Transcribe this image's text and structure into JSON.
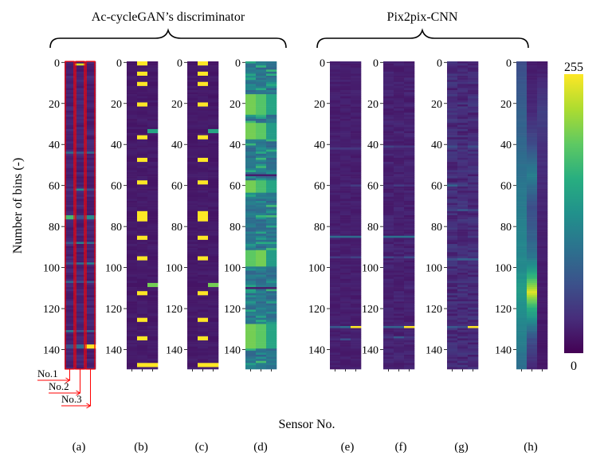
{
  "chart_data": {
    "type": "heatmap",
    "title_left": "Ac-cycleGAN’s discriminator",
    "title_right": "Pix2pix-CNN",
    "ylabel": "Number of bins (-)",
    "xlabel": "Sensor No.",
    "ylim": [
      0,
      150
    ],
    "yticks": [
      0,
      20,
      40,
      60,
      80,
      100,
      120,
      140
    ],
    "colorbar": {
      "min": 0,
      "max": 255,
      "max_label": "255",
      "min_label": "0",
      "colormap": "viridis"
    },
    "sensor_annotations": [
      "No.1",
      "No.2",
      "No.3"
    ],
    "panels": [
      {
        "label": "(a)",
        "group": "Ac-cycleGAN’s discriminator",
        "sensors": 3,
        "base": 15,
        "noise": 18,
        "highlight_sensors": true,
        "bands": [
          {
            "bin": 44,
            "width": 1,
            "values": [
              90,
              70,
              85
            ]
          },
          {
            "bin": 62,
            "width": 1,
            "values": [
              40,
              120,
              60
            ]
          },
          {
            "bin": 75,
            "width": 2,
            "values": [
              175,
              60,
              120
            ]
          },
          {
            "bin": 88,
            "width": 1,
            "values": [
              70,
              110,
              90
            ]
          },
          {
            "bin": 98,
            "width": 1,
            "values": [
              60,
              90,
              110
            ]
          },
          {
            "bin": 107,
            "width": 1,
            "values": [
              80,
              60,
              70
            ]
          },
          {
            "bin": 131,
            "width": 1,
            "values": [
              100,
              60,
              80
            ]
          },
          {
            "bin": 138,
            "width": 2,
            "values": [
              60,
              90,
              255
            ]
          },
          {
            "bin": 1,
            "width": 1,
            "values": [
              20,
              240,
              20
            ]
          }
        ]
      },
      {
        "label": "(b)",
        "group": "Ac-cycleGAN’s discriminator",
        "sensors": 3,
        "base": 14,
        "noise": 8,
        "highlight_sensors": false,
        "bands": [
          {
            "bin": 0,
            "width": 2,
            "values": [
              14,
              255,
              14
            ]
          },
          {
            "bin": 5,
            "width": 2,
            "values": [
              14,
              255,
              14
            ]
          },
          {
            "bin": 10,
            "width": 2,
            "values": [
              14,
              255,
              14
            ]
          },
          {
            "bin": 20,
            "width": 2,
            "values": [
              14,
              255,
              14
            ]
          },
          {
            "bin": 33,
            "width": 2,
            "values": [
              14,
              14,
              150
            ]
          },
          {
            "bin": 36,
            "width": 2,
            "values": [
              14,
              255,
              14
            ]
          },
          {
            "bin": 47,
            "width": 2,
            "values": [
              14,
              255,
              14
            ]
          },
          {
            "bin": 58,
            "width": 2,
            "values": [
              14,
              255,
              14
            ]
          },
          {
            "bin": 73,
            "width": 5,
            "values": [
              14,
              255,
              14
            ]
          },
          {
            "bin": 85,
            "width": 2,
            "values": [
              14,
              255,
              14
            ]
          },
          {
            "bin": 95,
            "width": 2,
            "values": [
              14,
              255,
              14
            ]
          },
          {
            "bin": 108,
            "width": 2,
            "values": [
              14,
              14,
              200
            ]
          },
          {
            "bin": 112,
            "width": 2,
            "values": [
              14,
              255,
              14
            ]
          },
          {
            "bin": 125,
            "width": 2,
            "values": [
              14,
              255,
              14
            ]
          },
          {
            "bin": 134,
            "width": 2,
            "values": [
              14,
              255,
              14
            ]
          },
          {
            "bin": 147,
            "width": 2,
            "values": [
              14,
              255,
              255
            ]
          }
        ]
      },
      {
        "label": "(c)",
        "group": "Ac-cycleGAN’s discriminator",
        "sensors": 3,
        "base": 14,
        "noise": 8,
        "highlight_sensors": false,
        "bands": [
          {
            "bin": 0,
            "width": 2,
            "values": [
              14,
              255,
              14
            ]
          },
          {
            "bin": 5,
            "width": 2,
            "values": [
              14,
              255,
              14
            ]
          },
          {
            "bin": 10,
            "width": 2,
            "values": [
              14,
              255,
              14
            ]
          },
          {
            "bin": 20,
            "width": 2,
            "values": [
              14,
              255,
              14
            ]
          },
          {
            "bin": 33,
            "width": 2,
            "values": [
              14,
              14,
              150
            ]
          },
          {
            "bin": 36,
            "width": 2,
            "values": [
              14,
              255,
              14
            ]
          },
          {
            "bin": 47,
            "width": 2,
            "values": [
              14,
              255,
              14
            ]
          },
          {
            "bin": 58,
            "width": 2,
            "values": [
              14,
              255,
              14
            ]
          },
          {
            "bin": 73,
            "width": 5,
            "values": [
              14,
              255,
              14
            ]
          },
          {
            "bin": 85,
            "width": 2,
            "values": [
              14,
              255,
              14
            ]
          },
          {
            "bin": 95,
            "width": 2,
            "values": [
              14,
              255,
              14
            ]
          },
          {
            "bin": 108,
            "width": 2,
            "values": [
              14,
              14,
              200
            ]
          },
          {
            "bin": 112,
            "width": 2,
            "values": [
              14,
              255,
              14
            ]
          },
          {
            "bin": 125,
            "width": 2,
            "values": [
              14,
              255,
              14
            ]
          },
          {
            "bin": 134,
            "width": 2,
            "values": [
              14,
              255,
              14
            ]
          },
          {
            "bin": 147,
            "width": 2,
            "values": [
              14,
              255,
              255
            ]
          }
        ]
      },
      {
        "label": "(d)",
        "group": "Ac-cycleGAN’s discriminator",
        "sensors": 3,
        "base": 80,
        "noise": 70,
        "highlight_sensors": false,
        "bands": [
          {
            "bin": 16,
            "width": 10,
            "values": [
              200,
              185,
              150
            ]
          },
          {
            "bin": 30,
            "width": 8,
            "values": [
              200,
              190,
              140
            ]
          },
          {
            "bin": 58,
            "width": 6,
            "values": [
              200,
              180,
              150
            ]
          },
          {
            "bin": 92,
            "width": 8,
            "values": [
              190,
              200,
              140
            ]
          },
          {
            "bin": 128,
            "width": 12,
            "values": [
              200,
              190,
              150
            ]
          },
          {
            "bin": 6,
            "width": 1,
            "values": [
              150,
              90,
              160
            ]
          },
          {
            "bin": 55,
            "width": 1,
            "values": [
              20,
              20,
              20
            ]
          },
          {
            "bin": 110,
            "width": 1,
            "values": [
              20,
              20,
              20
            ]
          }
        ]
      },
      {
        "label": "(e)",
        "group": "Pix2pix-CNN",
        "sensors": 3,
        "base": 16,
        "noise": 10,
        "highlight_sensors": false,
        "bands": [
          {
            "bin": 42,
            "width": 1,
            "values": [
              40,
              40,
              40
            ]
          },
          {
            "bin": 60,
            "width": 1,
            "values": [
              25,
              30,
              45
            ]
          },
          {
            "bin": 85,
            "width": 1,
            "values": [
              90,
              90,
              90
            ]
          },
          {
            "bin": 95,
            "width": 1,
            "values": [
              45,
              35,
              50
            ]
          },
          {
            "bin": 129,
            "width": 1,
            "values": [
              70,
              90,
              255
            ]
          },
          {
            "bin": 135,
            "width": 1,
            "values": [
              30,
              60,
              30
            ]
          }
        ]
      },
      {
        "label": "(f)",
        "group": "Pix2pix-CNN",
        "sensors": 3,
        "base": 16,
        "noise": 14,
        "highlight_sensors": false,
        "bands": [
          {
            "bin": 41,
            "width": 1,
            "values": [
              50,
              40,
              40
            ]
          },
          {
            "bin": 60,
            "width": 1,
            "values": [
              30,
              45,
              35
            ]
          },
          {
            "bin": 85,
            "width": 1,
            "values": [
              95,
              95,
              95
            ]
          },
          {
            "bin": 95,
            "width": 1,
            "values": [
              55,
              40,
              60
            ]
          },
          {
            "bin": 129,
            "width": 1,
            "values": [
              80,
              80,
              255
            ]
          },
          {
            "bin": 134,
            "width": 1,
            "values": [
              40,
              70,
              40
            ]
          }
        ]
      },
      {
        "label": "(g)",
        "group": "Pix2pix-CNN",
        "sensors": 3,
        "base": 18,
        "noise": 26,
        "highlight_sensors": false,
        "bands": [
          {
            "bin": 41,
            "width": 1,
            "values": [
              60,
              40,
              60
            ]
          },
          {
            "bin": 60,
            "width": 1,
            "values": [
              80,
              50,
              40
            ]
          },
          {
            "bin": 72,
            "width": 1,
            "values": [
              50,
              70,
              55
            ]
          },
          {
            "bin": 96,
            "width": 1,
            "values": [
              60,
              80,
              75
            ]
          },
          {
            "bin": 129,
            "width": 1,
            "values": [
              70,
              60,
              255
            ]
          }
        ]
      },
      {
        "label": "(h)",
        "group": "Pix2pix-CNN",
        "sensors": 3,
        "base": 18,
        "noise": 6,
        "highlight_sensors": false,
        "columns": [
          {
            "stops": [
              [
                0,
                60
              ],
              [
                20,
                75
              ],
              [
                40,
                85
              ],
              [
                60,
                100
              ],
              [
                80,
                110
              ],
              [
                100,
                120
              ],
              [
                110,
                140
              ],
              [
                125,
                120
              ],
              [
                150,
                90
              ]
            ]
          },
          {
            "stops": [
              [
                0,
                18
              ],
              [
                25,
                30
              ],
              [
                40,
                60
              ],
              [
                55,
                110
              ],
              [
                70,
                60
              ],
              [
                80,
                70
              ],
              [
                95,
                100
              ],
              [
                105,
                170
              ],
              [
                112,
                240
              ],
              [
                120,
                160
              ],
              [
                135,
                60
              ],
              [
                150,
                25
              ]
            ]
          },
          {
            "stops": [
              [
                0,
                15
              ],
              [
                10,
                30
              ],
              [
                25,
                50
              ],
              [
                40,
                35
              ],
              [
                70,
                25
              ],
              [
                100,
                20
              ],
              [
                150,
                15
              ]
            ]
          }
        ],
        "bands": []
      }
    ]
  }
}
